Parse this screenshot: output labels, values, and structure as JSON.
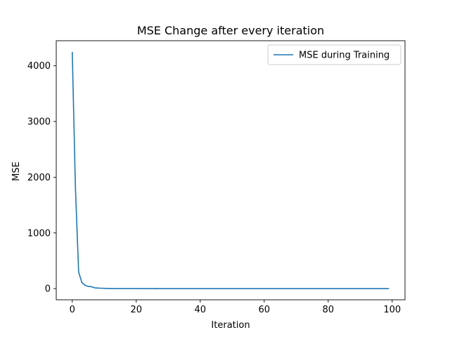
{
  "chart_data": {
    "type": "line",
    "title": "MSE Change after every iteration",
    "xlabel": "Iteration",
    "ylabel": "MSE",
    "xlim": [
      -5,
      104
    ],
    "ylim": [
      -200,
      4450
    ],
    "xticks": [
      0,
      20,
      40,
      60,
      80,
      100
    ],
    "yticks": [
      0,
      1000,
      2000,
      3000,
      4000
    ],
    "grid": false,
    "legend_position": "upper right",
    "series": [
      {
        "name": "MSE during Training",
        "color": "#1f77b4",
        "x": [
          0,
          1,
          2,
          3,
          4,
          5,
          6,
          7,
          8,
          9,
          10,
          11,
          12,
          13,
          14,
          15,
          16,
          17,
          18,
          19,
          20,
          21,
          22,
          23,
          24,
          25,
          26,
          27,
          28,
          29,
          30,
          31,
          32,
          33,
          34,
          35,
          36,
          37,
          38,
          39,
          40,
          41,
          42,
          43,
          44,
          45,
          46,
          47,
          48,
          49,
          50,
          51,
          52,
          53,
          54,
          55,
          56,
          57,
          58,
          59,
          60,
          61,
          62,
          63,
          64,
          65,
          66,
          67,
          68,
          69,
          70,
          71,
          72,
          73,
          74,
          75,
          76,
          77,
          78,
          79,
          80,
          81,
          82,
          83,
          84,
          85,
          86,
          87,
          88,
          89,
          90,
          91,
          92,
          93,
          94,
          95,
          96,
          97,
          98,
          99
        ],
        "y": [
          4250,
          1800,
          300,
          110,
          60,
          40,
          35,
          15,
          10,
          8,
          6,
          4,
          3,
          3,
          2,
          2,
          3,
          2,
          2,
          2,
          2,
          1,
          2,
          2,
          1,
          1,
          2,
          1,
          1,
          1,
          1,
          1,
          1,
          1,
          1,
          1,
          1,
          1,
          1,
          1,
          1,
          1,
          1,
          1,
          1,
          1,
          1,
          1,
          1,
          1,
          1,
          1,
          1,
          1,
          1,
          1,
          1,
          1,
          1,
          1,
          1,
          1,
          1,
          1,
          1,
          1,
          1,
          1,
          1,
          1,
          1,
          1,
          1,
          1,
          1,
          1,
          1,
          1,
          1,
          1,
          1,
          1,
          1,
          1,
          1,
          1,
          1,
          1,
          1,
          1,
          1,
          1,
          1,
          1,
          1,
          1,
          1,
          1,
          1,
          1
        ]
      }
    ]
  }
}
